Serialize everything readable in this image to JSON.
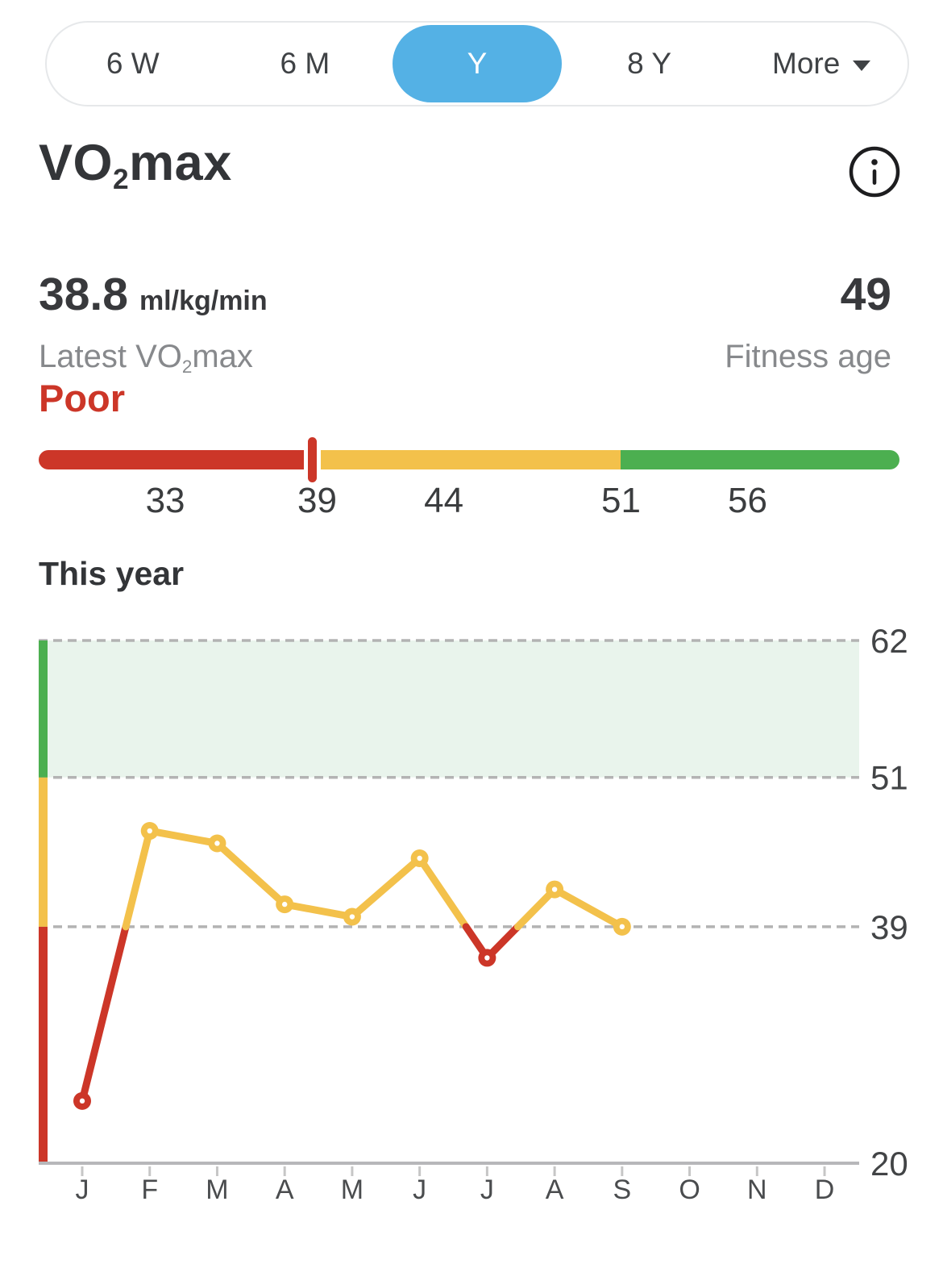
{
  "colors": {
    "blue": "#54b1e5",
    "red": "#cc3628",
    "yellow": "#f3c14b",
    "green": "#4caf50",
    "band_green": "#e9f4ec",
    "grid": "#b3b3b3",
    "axis": "#b7b7ba",
    "tick": "#c6c6c6",
    "dark_text": "#333538",
    "gray_text": "#87898c"
  },
  "time_selector": {
    "options": [
      {
        "label": "6 W",
        "selected": false
      },
      {
        "label": "6 M",
        "selected": false
      },
      {
        "label": "Y",
        "selected": true
      },
      {
        "label": "8 Y",
        "selected": false
      },
      {
        "label": "More",
        "selected": false,
        "has_caret": true
      }
    ]
  },
  "header": {
    "title": {
      "pre": "VO",
      "sub": "2",
      "post": "max"
    }
  },
  "stats": {
    "latest_value": "38.8",
    "latest_unit": "ml/kg/min",
    "latest_label": {
      "pre": "Latest VO",
      "sub": "2",
      "post": "max"
    },
    "fitness_age_value": "49",
    "fitness_age_label": "Fitness age"
  },
  "classification": {
    "label": "Poor"
  },
  "gauge": {
    "min": 28,
    "max": 62,
    "marker_value": 38.8,
    "zones": [
      {
        "to": 38.8,
        "color": "#cc3628",
        "name": "poor"
      },
      {
        "to": 51,
        "color": "#f3c14b",
        "name": "fair"
      },
      {
        "to": 62,
        "color": "#4caf50",
        "name": "good"
      }
    ],
    "tick_labels": [
      33,
      39,
      44,
      51,
      56
    ]
  },
  "chart_data": {
    "type": "line",
    "title": "This year",
    "x_labels": [
      "J",
      "F",
      "M",
      "A",
      "M",
      "J",
      "J",
      "A",
      "S",
      "O",
      "N",
      "D"
    ],
    "series": [
      {
        "name": "VO2max monthly",
        "values": [
          25,
          46.7,
          45.7,
          40.8,
          39.8,
          44.5,
          36.5,
          42,
          39
        ]
      }
    ],
    "y_ticks": [
      62,
      51,
      39,
      20
    ],
    "ylim": [
      20,
      62
    ],
    "gridlines_dashed": [
      62,
      51,
      39
    ],
    "baseline": 20,
    "band": {
      "from": 51,
      "to": 62,
      "color": "#e9f4ec"
    },
    "zones": [
      {
        "from": 20,
        "to": 39,
        "color": "#cc3628",
        "name": "poor"
      },
      {
        "from": 39,
        "to": 51,
        "color": "#f3c14b",
        "name": "fair"
      },
      {
        "from": 51,
        "to": 62,
        "color": "#4caf50",
        "name": "good"
      }
    ],
    "legend": "none",
    "grid": "dashed horizontal only"
  }
}
